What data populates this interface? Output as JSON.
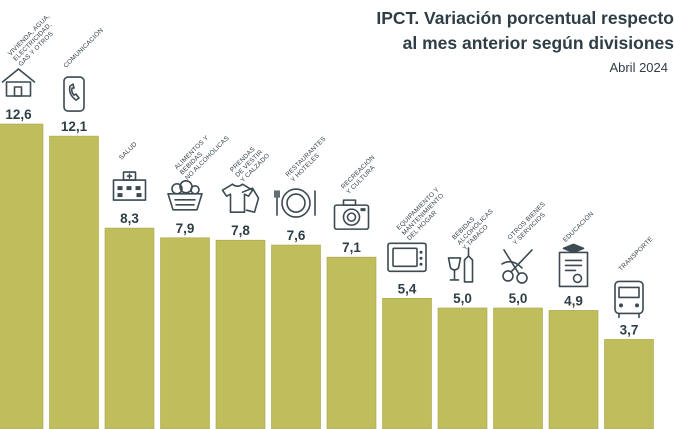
{
  "header": {
    "title_line1": "IPCT. Variación porcentual respecto",
    "title_line2": "al mes anterior según divisiones",
    "date": "Abril 2024"
  },
  "colors": {
    "bar": "#bfbd5c",
    "bar_edge": "#aaa74a",
    "text": "#2f3e46",
    "icon": "#3c4a52"
  },
  "chart_data": {
    "type": "bar",
    "title": "IPCT. Variación porcentual respecto al mes anterior según divisiones",
    "subtitle": "Abril 2024",
    "categories": [
      "VIVIENDA, AGUA, ELECTRICIDAD, GAS Y OTROS",
      "COMUNICACIÓN",
      "SALUD",
      "ALIMENTOS Y BEBIDAS NO ALCOHÓLICAS",
      "PRENDAS DE VESTIR Y CALZADO",
      "RESTAURANTES Y HOTELES",
      "RECREACIÓN Y CULTURA",
      "EQUIPAMIENTO Y MANTENIMIENTO DEL HOGAR",
      "BEBIDAS ALCOHÓLICAS Y TABACO",
      "OTROS BIENES Y SERVICIOS",
      "EDUCACIÓN",
      "TRANSPORTE"
    ],
    "category_lines": [
      [
        "VIVIENDA, AGUA,",
        "ELECTRICIDAD,",
        "GAS Y OTROS"
      ],
      [
        "COMUNICACIÓN"
      ],
      [
        "SALUD"
      ],
      [
        "ALIMENTOS Y",
        "BEBIDAS",
        "NO ALCOHÓLICAS"
      ],
      [
        "PRENDAS",
        "DE VESTIR",
        "Y CALZADO"
      ],
      [
        "RESTAURANTES",
        "Y HOTELES"
      ],
      [
        "RECREACIÓN",
        "Y CULTURA"
      ],
      [
        "EQUIPAMIENTO Y",
        "MANTENIMIENTO",
        "DEL HOGAR"
      ],
      [
        "BEBIDAS",
        "ALCOHÓLICAS",
        "Y TABACO"
      ],
      [
        "OTROS BIENES",
        "Y SERVICIOS"
      ],
      [
        "EDUCACIÓN"
      ],
      [
        "TRANSPORTE"
      ]
    ],
    "value_labels": [
      "12,6",
      "12,1",
      "8,3",
      "7,9",
      "7,8",
      "7,6",
      "7,1",
      "5,4",
      "5,0",
      "5,0",
      "4,9",
      "3,7"
    ],
    "values": [
      12.6,
      12.1,
      8.3,
      7.9,
      7.8,
      7.6,
      7.1,
      5.4,
      5.0,
      5.0,
      4.9,
      3.7
    ],
    "icons": [
      "house-icon",
      "phone-icon",
      "hospital-icon",
      "food-basket-icon",
      "clothing-icon",
      "plate-icon",
      "camera-icon",
      "microwave-icon",
      "bottle-glass-icon",
      "scissors-icon",
      "diploma-icon",
      "bus-icon"
    ],
    "ylim": [
      0,
      12.6
    ],
    "grid": false,
    "legend": "none"
  }
}
